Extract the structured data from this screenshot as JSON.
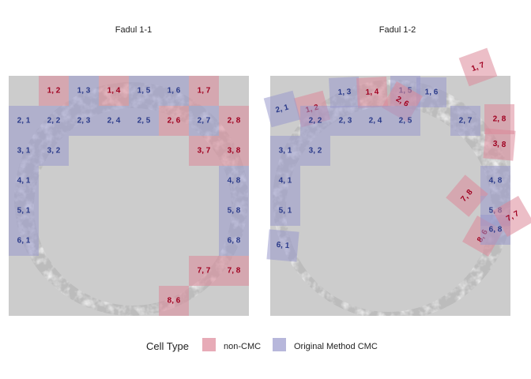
{
  "chart_data": [
    {
      "type": "tile",
      "title": "Fadul 1-1",
      "rows": 8,
      "cols": 8,
      "tiles": [
        {
          "row": 1,
          "col": 2,
          "label": "1, 2",
          "type": "non-CMC"
        },
        {
          "row": 1,
          "col": 3,
          "label": "1, 3",
          "type": "Original Method CMC"
        },
        {
          "row": 1,
          "col": 4,
          "label": "1, 4",
          "type": "non-CMC"
        },
        {
          "row": 1,
          "col": 5,
          "label": "1, 5",
          "type": "Original Method CMC"
        },
        {
          "row": 1,
          "col": 6,
          "label": "1, 6",
          "type": "Original Method CMC"
        },
        {
          "row": 1,
          "col": 7,
          "label": "1, 7",
          "type": "non-CMC"
        },
        {
          "row": 2,
          "col": 1,
          "label": "2, 1",
          "type": "Original Method CMC"
        },
        {
          "row": 2,
          "col": 2,
          "label": "2, 2",
          "type": "Original Method CMC"
        },
        {
          "row": 2,
          "col": 3,
          "label": "2, 3",
          "type": "Original Method CMC"
        },
        {
          "row": 2,
          "col": 4,
          "label": "2, 4",
          "type": "Original Method CMC"
        },
        {
          "row": 2,
          "col": 5,
          "label": "2, 5",
          "type": "Original Method CMC"
        },
        {
          "row": 2,
          "col": 6,
          "label": "2, 6",
          "type": "non-CMC"
        },
        {
          "row": 2,
          "col": 7,
          "label": "2, 7",
          "type": "Original Method CMC"
        },
        {
          "row": 2,
          "col": 8,
          "label": "2, 8",
          "type": "non-CMC"
        },
        {
          "row": 3,
          "col": 1,
          "label": "3, 1",
          "type": "Original Method CMC"
        },
        {
          "row": 3,
          "col": 2,
          "label": "3, 2",
          "type": "Original Method CMC"
        },
        {
          "row": 3,
          "col": 7,
          "label": "3, 7",
          "type": "non-CMC"
        },
        {
          "row": 3,
          "col": 8,
          "label": "3, 8",
          "type": "non-CMC"
        },
        {
          "row": 4,
          "col": 1,
          "label": "4, 1",
          "type": "Original Method CMC"
        },
        {
          "row": 4,
          "col": 8,
          "label": "4, 8",
          "type": "Original Method CMC"
        },
        {
          "row": 5,
          "col": 1,
          "label": "5, 1",
          "type": "Original Method CMC"
        },
        {
          "row": 5,
          "col": 8,
          "label": "5, 8",
          "type": "Original Method CMC"
        },
        {
          "row": 6,
          "col": 1,
          "label": "6, 1",
          "type": "Original Method CMC"
        },
        {
          "row": 6,
          "col": 8,
          "label": "6, 8",
          "type": "Original Method CMC"
        },
        {
          "row": 7,
          "col": 7,
          "label": "7, 7",
          "type": "non-CMC"
        },
        {
          "row": 7,
          "col": 8,
          "label": "7, 8",
          "type": "non-CMC"
        },
        {
          "row": 8,
          "col": 6,
          "label": "8, 6",
          "type": "non-CMC"
        }
      ]
    },
    {
      "type": "tile",
      "title": "Fadul 1-2",
      "rows": 8,
      "cols": 8,
      "tiles": [
        {
          "row": 1,
          "col": 7,
          "label": "1, 7",
          "type": "non-CMC",
          "rotation": -20
        },
        {
          "row": 1,
          "col": 2,
          "label": "1, 2",
          "type": "non-CMC",
          "rotation": -15
        },
        {
          "row": 2,
          "col": 1,
          "label": "2, 1",
          "type": "Original Method CMC",
          "rotation": -15
        },
        {
          "row": 1,
          "col": 3,
          "label": "1, 3",
          "type": "Original Method CMC",
          "rotation": -3
        },
        {
          "row": 1,
          "col": 4,
          "label": "1, 4",
          "type": "non-CMC",
          "rotation": -3
        },
        {
          "row": 1,
          "col": 5,
          "label": "1, 5",
          "type": "Original Method CMC",
          "rotation": 0
        },
        {
          "row": 1,
          "col": 6,
          "label": "1, 6",
          "type": "Original Method CMC",
          "rotation": 0
        },
        {
          "row": 2,
          "col": 6,
          "label": "2, 6",
          "type": "non-CMC",
          "rotation": 30
        },
        {
          "row": 2,
          "col": 2,
          "label": "2, 2",
          "type": "Original Method CMC",
          "rotation": 0
        },
        {
          "row": 2,
          "col": 3,
          "label": "2, 3",
          "type": "Original Method CMC",
          "rotation": 0
        },
        {
          "row": 2,
          "col": 4,
          "label": "2, 4",
          "type": "Original Method CMC",
          "rotation": 0
        },
        {
          "row": 2,
          "col": 5,
          "label": "2, 5",
          "type": "Original Method CMC",
          "rotation": 0
        },
        {
          "row": 2,
          "col": 7,
          "label": "2, 7",
          "type": "Original Method CMC",
          "rotation": 0
        },
        {
          "row": 2,
          "col": 8,
          "label": "2, 8",
          "type": "non-CMC",
          "rotation": 0
        },
        {
          "row": 3,
          "col": 1,
          "label": "3, 1",
          "type": "Original Method CMC",
          "rotation": 0
        },
        {
          "row": 3,
          "col": 2,
          "label": "3, 2",
          "type": "Original Method CMC",
          "rotation": 0
        },
        {
          "row": 3,
          "col": 8,
          "label": "3, 8",
          "type": "non-CMC",
          "rotation": 5
        },
        {
          "row": 4,
          "col": 1,
          "label": "4, 1",
          "type": "Original Method CMC",
          "rotation": 0
        },
        {
          "row": 4,
          "col": 8,
          "label": "4, 8",
          "type": "Original Method CMC",
          "rotation": 0
        },
        {
          "row": 7,
          "col": 8,
          "label": "7, 8",
          "type": "non-CMC",
          "rotation": -50
        },
        {
          "row": 5,
          "col": 1,
          "label": "5, 1",
          "type": "Original Method CMC",
          "rotation": 0
        },
        {
          "row": 5,
          "col": 8,
          "label": "5, 8",
          "type": "Original Method CMC",
          "rotation": 0
        },
        {
          "row": 8,
          "col": 6,
          "label": "8, 6",
          "type": "non-CMC",
          "rotation": -60
        },
        {
          "row": 6,
          "col": 1,
          "label": "6, 1",
          "type": "Original Method CMC",
          "rotation": 5
        },
        {
          "row": 6,
          "col": 8,
          "label": "6, 8",
          "type": "Original Method CMC",
          "rotation": 0
        },
        {
          "row": 7,
          "col": 7,
          "label": "7, 7",
          "type": "non-CMC",
          "rotation": -30
        }
      ]
    }
  ],
  "legend": {
    "title": "Cell Type",
    "items": [
      {
        "label": "non-CMC",
        "color": "#cc6677"
      },
      {
        "label": "Original Method CMC",
        "color": "#8888bb"
      }
    ]
  },
  "colors": {
    "non-CMC": {
      "fill": "#dd8899",
      "text": "#a00020"
    },
    "Original Method CMC": {
      "fill": "#9999cc",
      "text": "#2a3a8a"
    },
    "panel_bg": "#cccccc"
  }
}
